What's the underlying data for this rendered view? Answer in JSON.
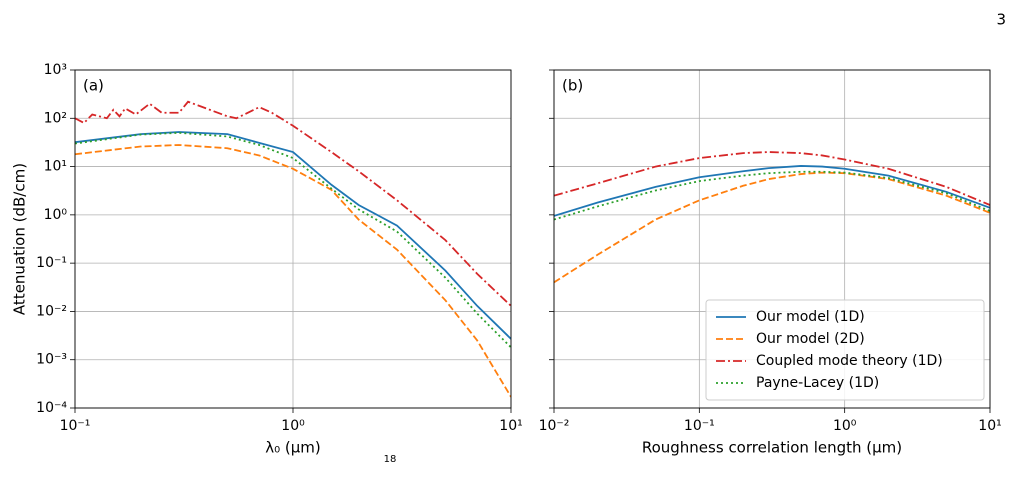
{
  "page_number": "3",
  "footnote_mark": "18",
  "chart_data": [
    {
      "type": "line",
      "annotation": "(a)",
      "xlabel": "λ₀ (μm)",
      "ylabel": "Attenuation (dB/cm)",
      "xscale": "log",
      "yscale": "log",
      "grid": true,
      "xlim": [
        0.1,
        10
      ],
      "ylim": [
        0.0001,
        1000
      ],
      "xticks": [
        {
          "value": 0.1,
          "label": "10⁻¹"
        },
        {
          "value": 1,
          "label": "10⁰"
        },
        {
          "value": 10,
          "label": "10¹"
        }
      ],
      "yticks": [
        {
          "value": 0.0001,
          "label": "10⁻⁴"
        },
        {
          "value": 0.001,
          "label": "10⁻³"
        },
        {
          "value": 0.01,
          "label": "10⁻²"
        },
        {
          "value": 0.1,
          "label": "10⁻¹"
        },
        {
          "value": 1,
          "label": "10⁰"
        },
        {
          "value": 10,
          "label": "10¹"
        },
        {
          "value": 100,
          "label": "10²"
        },
        {
          "value": 1000,
          "label": "10³"
        }
      ],
      "series": [
        {
          "name": "Our model (1D)",
          "color": "#1f77b4",
          "linestyle": "solid",
          "x": [
            0.1,
            0.2,
            0.3,
            0.5,
            0.7,
            1,
            1.5,
            2,
            3,
            5,
            7,
            10
          ],
          "values": [
            32,
            47,
            52,
            47,
            31,
            20,
            4.2,
            1.6,
            0.6,
            0.07,
            0.013,
            0.0027
          ]
        },
        {
          "name": "Our model (2D)",
          "color": "#ff7f0e",
          "linestyle": "dashed",
          "x": [
            0.1,
            0.2,
            0.3,
            0.5,
            0.7,
            1,
            1.5,
            2,
            3,
            5,
            7,
            10
          ],
          "values": [
            18,
            26,
            28,
            24,
            17,
            9,
            3.3,
            0.8,
            0.19,
            0.017,
            0.0025,
            0.00017
          ]
        },
        {
          "name": "Coupled mode theory (1D)",
          "color": "#d62728",
          "linestyle": "dashdot",
          "x": [
            0.1,
            0.11,
            0.12,
            0.14,
            0.15,
            0.16,
            0.17,
            0.19,
            0.22,
            0.25,
            0.3,
            0.33,
            0.4,
            0.5,
            0.55,
            0.7,
            0.8,
            1,
            1.5,
            2,
            3,
            5,
            7,
            10
          ],
          "values": [
            100,
            80,
            120,
            100,
            150,
            110,
            160,
            120,
            200,
            130,
            130,
            220,
            160,
            110,
            100,
            170,
            130,
            70,
            20,
            8,
            2,
            0.3,
            0.06,
            0.013
          ]
        },
        {
          "name": "Payne-Lacey (1D)",
          "color": "#2ca02c",
          "linestyle": "dotted",
          "x": [
            0.1,
            0.2,
            0.3,
            0.5,
            0.7,
            1,
            1.5,
            2,
            3,
            5,
            7,
            10
          ],
          "values": [
            30,
            46,
            50,
            42,
            28,
            15,
            3.5,
            1.3,
            0.45,
            0.05,
            0.009,
            0.0018
          ]
        }
      ]
    },
    {
      "type": "line",
      "annotation": "(b)",
      "xlabel": "Roughness correlation length (μm)",
      "xscale": "log",
      "yscale": "log",
      "grid": true,
      "ytick_labels": false,
      "legend": "lower right",
      "xlim": [
        0.01,
        10
      ],
      "ylim": [
        0.0001,
        1000
      ],
      "xticks": [
        {
          "value": 0.01,
          "label": "10⁻²"
        },
        {
          "value": 0.1,
          "label": "10⁻¹"
        },
        {
          "value": 1,
          "label": "10⁰"
        },
        {
          "value": 10,
          "label": "10¹"
        }
      ],
      "yticks": [
        0.0001,
        0.001,
        0.01,
        0.1,
        1,
        10,
        100,
        1000
      ],
      "series": [
        {
          "name": "Our model (1D)",
          "color": "#1f77b4",
          "linestyle": "solid",
          "x": [
            0.01,
            0.02,
            0.05,
            0.1,
            0.2,
            0.3,
            0.5,
            0.7,
            1,
            2,
            5,
            10
          ],
          "values": [
            0.95,
            1.8,
            3.8,
            6,
            8,
            9.3,
            10.3,
            10,
            9,
            6.5,
            3,
            1.4
          ]
        },
        {
          "name": "Our model (2D)",
          "color": "#ff7f0e",
          "linestyle": "dashed",
          "x": [
            0.01,
            0.02,
            0.05,
            0.1,
            0.2,
            0.3,
            0.5,
            0.7,
            1,
            2,
            5,
            10
          ],
          "values": [
            0.04,
            0.15,
            0.8,
            2,
            4,
            5.5,
            7,
            7.5,
            7.3,
            5.5,
            2.5,
            1.1
          ]
        },
        {
          "name": "Coupled mode theory (1D)",
          "color": "#d62728",
          "linestyle": "dashdot",
          "x": [
            0.01,
            0.02,
            0.05,
            0.1,
            0.2,
            0.3,
            0.5,
            0.7,
            1,
            2,
            5,
            10
          ],
          "values": [
            2.5,
            4.5,
            10,
            15,
            19,
            20,
            19,
            17,
            14,
            9,
            3.8,
            1.6
          ]
        },
        {
          "name": "Payne-Lacey (1D)",
          "color": "#2ca02c",
          "linestyle": "dotted",
          "x": [
            0.01,
            0.02,
            0.05,
            0.1,
            0.2,
            0.3,
            0.5,
            0.7,
            1,
            2,
            5,
            10
          ],
          "values": [
            0.8,
            1.5,
            3.2,
            5,
            6.5,
            7.3,
            7.8,
            7.8,
            7.5,
            5.8,
            2.8,
            1.2
          ]
        }
      ]
    }
  ]
}
